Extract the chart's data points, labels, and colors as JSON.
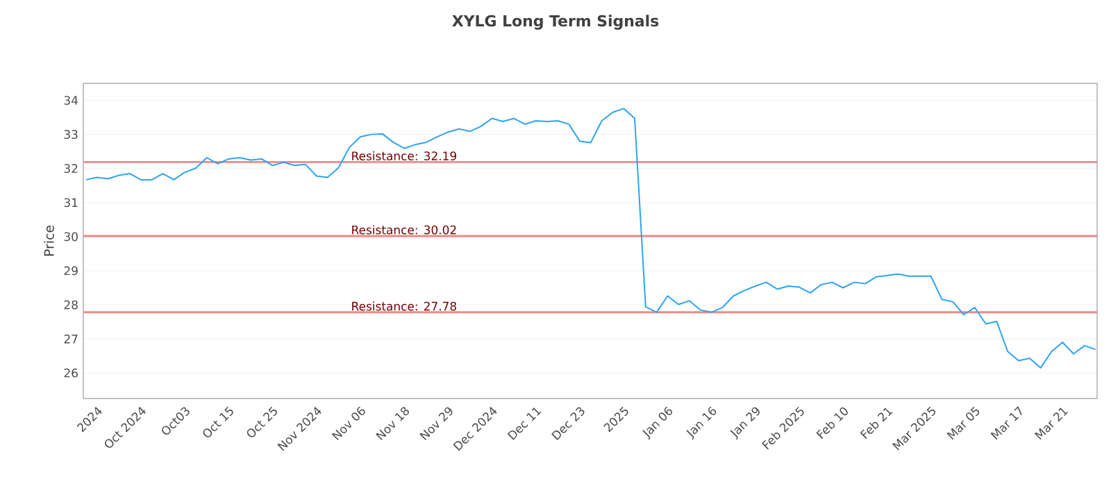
{
  "chart_data": {
    "type": "line",
    "title": "XYLG Long Term Signals",
    "ylabel": "Price",
    "categories": [
      null,
      "2024",
      null,
      null,
      null,
      "Oct 2024",
      null,
      null,
      null,
      "Oct03",
      null,
      null,
      null,
      "Oct 15",
      null,
      null,
      null,
      "Oct 25",
      null,
      null,
      null,
      "Nov 2024",
      null,
      null,
      null,
      "Nov 06",
      null,
      null,
      null,
      "Nov 18",
      null,
      null,
      null,
      "Nov 29",
      null,
      null,
      null,
      "Dec 2024",
      null,
      null,
      null,
      "Dec 11",
      null,
      null,
      null,
      "Dec 23",
      null,
      null,
      null,
      "2025",
      null,
      null,
      null,
      "Jan 06",
      null,
      null,
      null,
      "Jan 16",
      null,
      null,
      null,
      "Jan 29",
      null,
      null,
      null,
      "Feb 2025",
      null,
      null,
      null,
      "Feb 10",
      null,
      null,
      null,
      "Feb 21",
      null,
      null,
      null,
      "Mar 2025",
      null,
      null,
      null,
      "Mar 05",
      null,
      null,
      null,
      "Mar 17",
      null,
      null,
      null,
      "Mar 21",
      null,
      null,
      null
    ],
    "series": [
      {
        "color": "#2ea3f2",
        "values": [
          31.67,
          31.74,
          31.7,
          31.8,
          31.85,
          31.67,
          31.67,
          31.85,
          31.67,
          31.89,
          32.01,
          32.32,
          32.14,
          32.28,
          32.32,
          32.25,
          32.28,
          32.09,
          32.18,
          32.09,
          32.12,
          31.78,
          31.74,
          32.02,
          32.62,
          32.93,
          33.0,
          33.02,
          32.77,
          32.59,
          32.7,
          32.77,
          32.93,
          33.07,
          33.16,
          33.09,
          33.24,
          33.47,
          33.38,
          33.47,
          33.3,
          33.4,
          33.38,
          33.4,
          33.3,
          32.8,
          32.76,
          33.4,
          33.65,
          33.76,
          33.47,
          27.94,
          27.78,
          28.26,
          28.01,
          28.12,
          27.85,
          27.78,
          27.92,
          28.26,
          28.42,
          28.55,
          28.66,
          28.46,
          28.55,
          28.52,
          28.35,
          28.59,
          28.66,
          28.5,
          28.66,
          28.62,
          28.82,
          28.86,
          28.9,
          28.84,
          28.84,
          28.84,
          28.16,
          28.09,
          27.71,
          27.92,
          27.44,
          27.51,
          26.63,
          26.36,
          26.43,
          26.15,
          26.63,
          26.9,
          26.56,
          26.8,
          26.69
        ]
      }
    ],
    "ylim": [
      25.25,
      34.5
    ],
    "yticks": [
      26,
      27,
      28,
      29,
      30,
      31,
      32,
      33,
      34
    ],
    "grid": "y",
    "marker": "none",
    "line_style": "solid",
    "ref_lines": [
      {
        "axis": "y",
        "value": 32.19,
        "label": "Resistance: 32.19",
        "color": "#ee8888"
      },
      {
        "axis": "y",
        "value": 30.02,
        "label": "Resistance: 30.02",
        "color": "#ee8888"
      },
      {
        "axis": "y",
        "value": 27.78,
        "label": "Resistance: 27.78",
        "color": "#ee8888"
      }
    ]
  }
}
